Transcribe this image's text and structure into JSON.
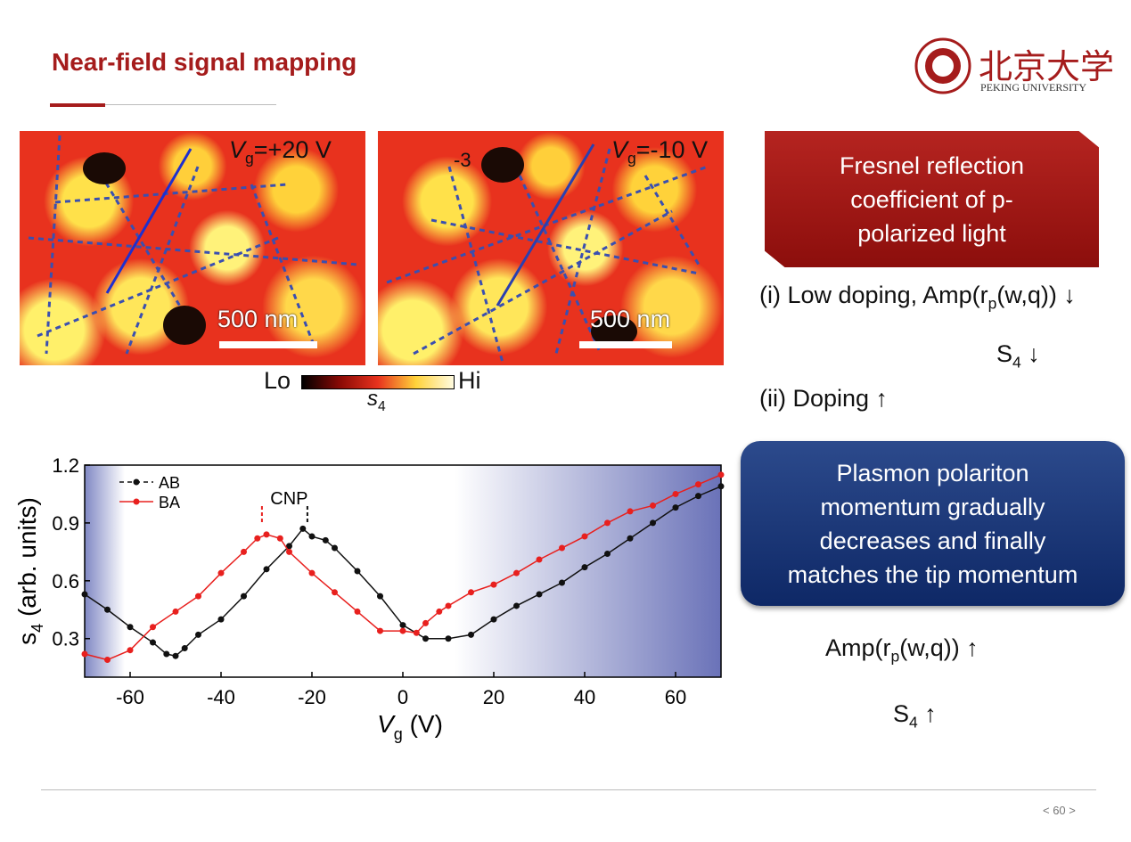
{
  "header": {
    "title": "Near-field signal mapping",
    "logo_text": "北京大学",
    "logo_subtext": "PEKING UNIVERSITY"
  },
  "images": [
    {
      "gate_v": "V",
      "gate_sub": "g",
      "gate_value": "=+20 V",
      "scale": "500 nm"
    },
    {
      "gate_v": "V",
      "gate_sub": "g",
      "gate_value": "=-10 V",
      "scale": "500 nm",
      "marker": "-3"
    }
  ],
  "colorbar": {
    "low": "Lo",
    "high": "Hi",
    "symbol": "s",
    "symbol_sub": "4"
  },
  "chart_data": {
    "type": "line",
    "xlabel": {
      "main": "V",
      "sub": "g",
      "rest": " (V)"
    },
    "ylabel": {
      "main": "s",
      "sub": "4",
      "rest": " (arb. units)"
    },
    "xlim": [
      -70,
      70
    ],
    "xticks": [
      -60,
      -40,
      -20,
      0,
      20,
      40,
      60
    ],
    "ylim": [
      0.1,
      1.2
    ],
    "yticks": [
      0.3,
      0.6,
      0.9,
      1.2
    ],
    "legend": "upper left",
    "annotation": {
      "text": "CNP",
      "x": [
        -31,
        -21
      ]
    },
    "series": [
      {
        "name": "AB",
        "color": "#111111",
        "x": [
          -70,
          -65,
          -60,
          -55,
          -52,
          -50,
          -48,
          -45,
          -40,
          -35,
          -30,
          -25,
          -22,
          -20,
          -17,
          -15,
          -10,
          -5,
          0,
          5,
          10,
          15,
          20,
          25,
          30,
          35,
          40,
          45,
          50,
          55,
          60,
          65,
          70
        ],
        "values": [
          0.53,
          0.45,
          0.36,
          0.28,
          0.22,
          0.21,
          0.25,
          0.32,
          0.4,
          0.52,
          0.66,
          0.78,
          0.87,
          0.83,
          0.81,
          0.77,
          0.65,
          0.52,
          0.37,
          0.3,
          0.3,
          0.32,
          0.4,
          0.47,
          0.53,
          0.59,
          0.67,
          0.74,
          0.82,
          0.9,
          0.98,
          1.04,
          1.09
        ]
      },
      {
        "name": "BA",
        "color": "#e8201e",
        "x": [
          -70,
          -65,
          -60,
          -55,
          -50,
          -45,
          -40,
          -35,
          -32,
          -30,
          -27,
          -25,
          -20,
          -15,
          -10,
          -5,
          0,
          3,
          5,
          8,
          10,
          15,
          20,
          25,
          30,
          35,
          40,
          45,
          50,
          55,
          60,
          65,
          70
        ],
        "values": [
          0.22,
          0.19,
          0.24,
          0.36,
          0.44,
          0.52,
          0.64,
          0.75,
          0.82,
          0.84,
          0.82,
          0.75,
          0.64,
          0.54,
          0.44,
          0.34,
          0.34,
          0.33,
          0.38,
          0.44,
          0.47,
          0.54,
          0.58,
          0.64,
          0.71,
          0.77,
          0.83,
          0.9,
          0.96,
          0.99,
          1.05,
          1.1,
          1.15
        ]
      }
    ]
  },
  "boxes": [
    {
      "lines": [
        "Fresnel reflection",
        "coefficient of p-",
        "polarized light"
      ]
    },
    {
      "lines": [
        "Plasmon polariton",
        "momentum gradually",
        "decreases and finally",
        "matches the tip momentum"
      ]
    }
  ],
  "notes": {
    "low_doping": {
      "pre": "(i) Low doping, Amp(r",
      "sub": "p",
      "post": "(w,q))"
    },
    "s4_down": {
      "main": "S",
      "sub": "4"
    },
    "doping": "(ii) Doping",
    "amp_up": {
      "pre": "Amp(r",
      "sub": "p",
      "post": "(w,q))"
    },
    "s4_up": {
      "main": "S",
      "sub": "4"
    }
  },
  "footer": {
    "page": "< 60 >"
  }
}
